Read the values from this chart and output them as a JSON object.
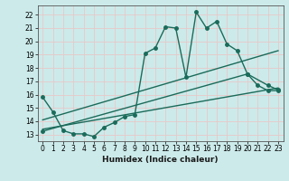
{
  "title": "",
  "xlabel": "Humidex (Indice chaleur)",
  "bg_color": "#cceaea",
  "line_color": "#1a6b5a",
  "grid_color": "#e8c8c8",
  "xlim": [
    -0.5,
    23.5
  ],
  "ylim": [
    12.5,
    22.7
  ],
  "yticks": [
    13,
    14,
    15,
    16,
    17,
    18,
    19,
    20,
    21,
    22
  ],
  "xticks": [
    0,
    1,
    2,
    3,
    4,
    5,
    6,
    7,
    8,
    9,
    10,
    11,
    12,
    13,
    14,
    15,
    16,
    17,
    18,
    19,
    20,
    21,
    22,
    23
  ],
  "main_curve_x": [
    0,
    1,
    2,
    3,
    4,
    5,
    6,
    7,
    8,
    9,
    10,
    11,
    12,
    13,
    14,
    15,
    16,
    17,
    18,
    19,
    20,
    21,
    22,
    23
  ],
  "main_curve_y": [
    15.8,
    14.7,
    13.3,
    13.05,
    13.05,
    12.85,
    13.55,
    13.9,
    14.35,
    14.5,
    19.1,
    19.5,
    21.1,
    21.0,
    17.3,
    22.2,
    21.0,
    21.5,
    19.8,
    19.3,
    17.55,
    16.7,
    16.3,
    16.3
  ],
  "line1_x": [
    0,
    23
  ],
  "line1_y": [
    14.1,
    19.3
  ],
  "line2_x": [
    0,
    23
  ],
  "line2_y": [
    13.4,
    16.5
  ],
  "line3_x": [
    0,
    20,
    22,
    23
  ],
  "line3_y": [
    13.25,
    17.55,
    16.7,
    16.35
  ],
  "marker_size": 2.5,
  "linewidth": 1.0
}
